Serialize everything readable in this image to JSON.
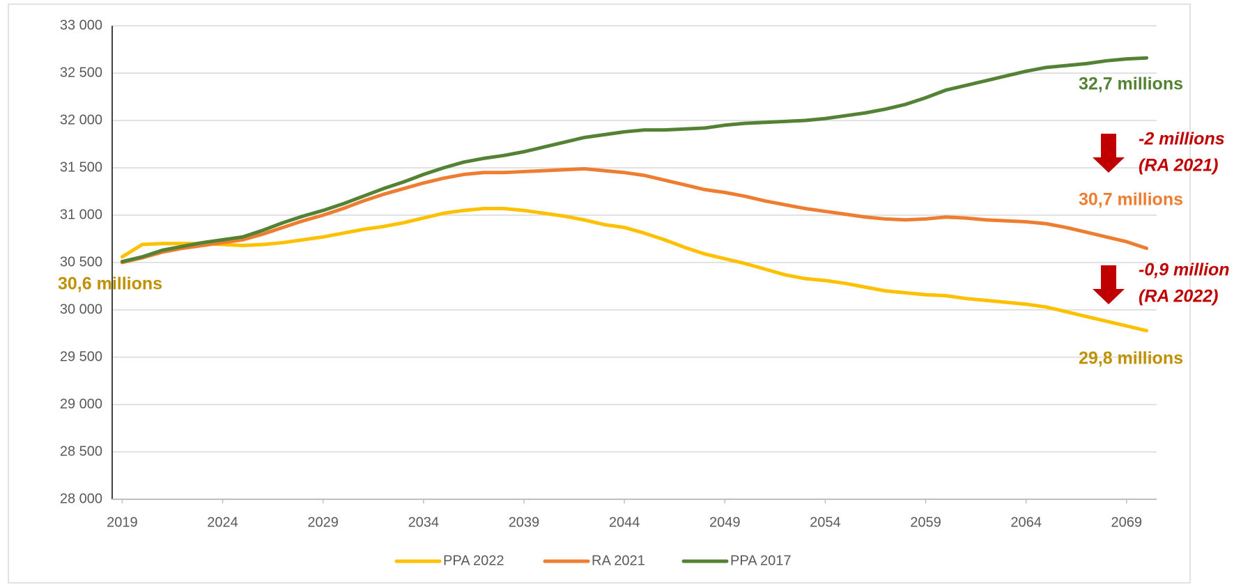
{
  "chart_data": {
    "type": "line",
    "x": [
      2019,
      2020,
      2021,
      2022,
      2023,
      2024,
      2025,
      2026,
      2027,
      2028,
      2029,
      2030,
      2031,
      2032,
      2033,
      2034,
      2035,
      2036,
      2037,
      2038,
      2039,
      2040,
      2041,
      2042,
      2043,
      2044,
      2045,
      2046,
      2047,
      2048,
      2049,
      2050,
      2051,
      2052,
      2053,
      2054,
      2055,
      2056,
      2057,
      2058,
      2059,
      2060,
      2061,
      2062,
      2063,
      2064,
      2065,
      2066,
      2067,
      2068,
      2069,
      2070
    ],
    "series": [
      {
        "name": "PPA 2022",
        "color": "#ffc000",
        "values": [
          30560,
          30690,
          30700,
          30700,
          30700,
          30690,
          30680,
          30690,
          30710,
          30740,
          30770,
          30810,
          30850,
          30880,
          30920,
          30970,
          31020,
          31050,
          31070,
          31070,
          31050,
          31020,
          30990,
          30950,
          30900,
          30870,
          30810,
          30740,
          30660,
          30590,
          30540,
          30490,
          30430,
          30370,
          30330,
          30310,
          30280,
          30240,
          30200,
          30180,
          30160,
          30150,
          30120,
          30100,
          30080,
          30060,
          30030,
          29980,
          29930,
          29880,
          29830,
          29780
        ]
      },
      {
        "name": "RA 2021",
        "color": "#ed7d31",
        "values": [
          30500,
          30550,
          30610,
          30650,
          30680,
          30710,
          30740,
          30800,
          30870,
          30940,
          31000,
          31070,
          31150,
          31220,
          31280,
          31340,
          31390,
          31430,
          31450,
          31450,
          31460,
          31470,
          31480,
          31490,
          31470,
          31450,
          31420,
          31370,
          31320,
          31270,
          31240,
          31200,
          31150,
          31110,
          31070,
          31040,
          31010,
          30980,
          30960,
          30950,
          30960,
          30980,
          30970,
          30950,
          30940,
          30930,
          30910,
          30870,
          30820,
          30770,
          30720,
          30650
        ]
      },
      {
        "name": "PPA 2017",
        "color": "#548235",
        "values": [
          30510,
          30560,
          30630,
          30670,
          30710,
          30740,
          30770,
          30840,
          30920,
          30990,
          31050,
          31120,
          31200,
          31280,
          31350,
          31430,
          31500,
          31560,
          31600,
          31630,
          31670,
          31720,
          31770,
          31820,
          31850,
          31880,
          31900,
          31900,
          31910,
          31920,
          31950,
          31970,
          31980,
          31990,
          32000,
          32020,
          32050,
          32080,
          32120,
          32170,
          32240,
          32320,
          32370,
          32420,
          32470,
          32520,
          32560,
          32580,
          32600,
          32630,
          32650,
          32660
        ]
      }
    ],
    "xlim": [
      2018.5,
      2070.5
    ],
    "xticks": [
      2019,
      2024,
      2029,
      2034,
      2039,
      2044,
      2049,
      2054,
      2059,
      2064,
      2069
    ],
    "ylim": [
      28000,
      33000
    ],
    "yticks": [
      {
        "value": 28000,
        "label": "28 000"
      },
      {
        "value": 28500,
        "label": "28 500"
      },
      {
        "value": 29000,
        "label": "29 000"
      },
      {
        "value": 29500,
        "label": "29 500"
      },
      {
        "value": 30000,
        "label": "30 000"
      },
      {
        "value": 30500,
        "label": "30 500"
      },
      {
        "value": 31000,
        "label": "31 000"
      },
      {
        "value": 31500,
        "label": "31 500"
      },
      {
        "value": 32000,
        "label": "32 000"
      },
      {
        "value": 32500,
        "label": "32 500"
      },
      {
        "value": 33000,
        "label": "33 000"
      }
    ],
    "grid": true,
    "legend": "bottom",
    "annotations": [
      {
        "text": "32,7 millions",
        "color": "#548235"
      },
      {
        "text": "-2 millions",
        "color": "#c00000"
      },
      {
        "text": "(RA 2021)",
        "color": "#c00000"
      },
      {
        "text": "30,7 millions",
        "color": "#ed7d31"
      },
      {
        "text": "-0,9 million",
        "color": "#c00000"
      },
      {
        "text": "(RA 2022)",
        "color": "#c00000"
      },
      {
        "text": "29,8 millions",
        "color": "#bf9000"
      },
      {
        "text": "30,6 millions",
        "color": "#bf9000"
      }
    ]
  }
}
